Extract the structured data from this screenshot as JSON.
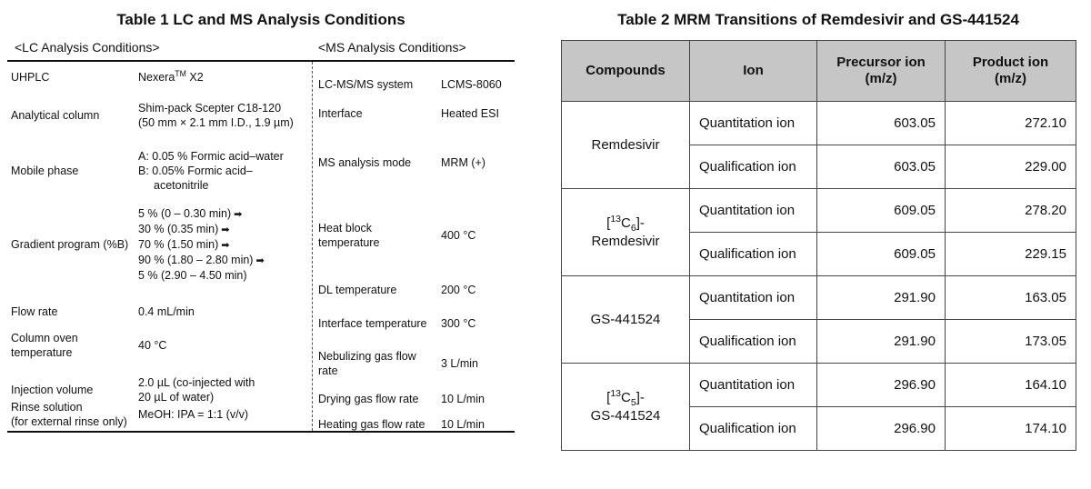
{
  "table1": {
    "title": "Table 1  LC and MS Analysis Conditions",
    "lc_header": "<LC Analysis Conditions>",
    "ms_header": "<MS Analysis Conditions>",
    "lc_rows": [
      {
        "label": "UHPLC",
        "value": [
          "Nexera",
          "X2"
        ],
        "sup": "TM"
      },
      {
        "label": "Analytical column",
        "value": [
          "Shim-pack Scepter C18-120",
          "(50 mm × 2.1 mm I.D., 1.9 µm)"
        ]
      },
      {
        "label": "Mobile phase",
        "value": [
          "A: 0.05 % Formic acid–water",
          "B: 0.05% Formic acid–",
          "acetonitrile"
        ]
      },
      {
        "label": "Gradient program (%B)",
        "value": [
          "5 % (0 – 0.30 min)",
          "30 % (0.35 min)",
          "70 % (1.50 min)",
          "90 % (1.80 – 2.80 min)",
          "5 % (2.90 – 4.50 min)"
        ],
        "arrow": "➡"
      },
      {
        "label": "Flow rate",
        "value": [
          "0.4 mL/min"
        ]
      },
      {
        "label": [
          "Column oven",
          "temperature"
        ],
        "value": [
          "40 °C"
        ]
      },
      {
        "label": "Injection volume",
        "value": [
          "2.0 µL (co-injected with",
          "20 µL of water)"
        ]
      },
      {
        "label": [
          "Rinse solution",
          "(for external rinse only)"
        ],
        "value": [
          "MeOH: IPA = 1:1 (v/v)"
        ]
      }
    ],
    "ms_rows": [
      {
        "label": "LC-MS/MS system",
        "value": "LCMS-8060"
      },
      {
        "label": "Interface",
        "value": "Heated ESI"
      },
      {
        "label": "MS analysis mode",
        "value": "MRM (+)"
      },
      {
        "label": [
          "Heat block",
          "temperature"
        ],
        "value": "400 °C"
      },
      {
        "label": "DL temperature",
        "value": "200 °C"
      },
      {
        "label": "Interface temperature",
        "value": "300 °C"
      },
      {
        "label": [
          "Nebulizing gas flow",
          "rate"
        ],
        "value": "3 L/min"
      },
      {
        "label": "Drying gas flow rate",
        "value": "10 L/min"
      },
      {
        "label": "Heating gas flow rate",
        "value": "10 L/min"
      }
    ]
  },
  "table2": {
    "title": "Table 2  MRM Transitions of Remdesivir and GS-441524",
    "headers": [
      "Compounds",
      "Ion",
      "Precursor ion\n(m/z)",
      "Product ion\n(m/z)"
    ],
    "compounds": [
      {
        "name": "Remdesivir",
        "rows": [
          [
            "Quantitation ion",
            "603.05",
            "272.10"
          ],
          [
            "Qualification ion",
            "603.05",
            "229.00"
          ]
        ]
      },
      {
        "name": "[13C6]-Remdesivir",
        "rows": [
          [
            "Quantitation ion",
            "609.05",
            "278.20"
          ],
          [
            "Qualification ion",
            "609.05",
            "229.15"
          ]
        ]
      },
      {
        "name": "GS-441524",
        "rows": [
          [
            "Quantitation ion",
            "291.90",
            "163.05"
          ],
          [
            "Qualification ion",
            "291.90",
            "173.05"
          ]
        ]
      },
      {
        "name": "[13C5]-GS-441524",
        "rows": [
          [
            "Quantitation ion",
            "296.90",
            "164.10"
          ],
          [
            "Qualification ion",
            "296.90",
            "174.10"
          ]
        ]
      }
    ]
  }
}
